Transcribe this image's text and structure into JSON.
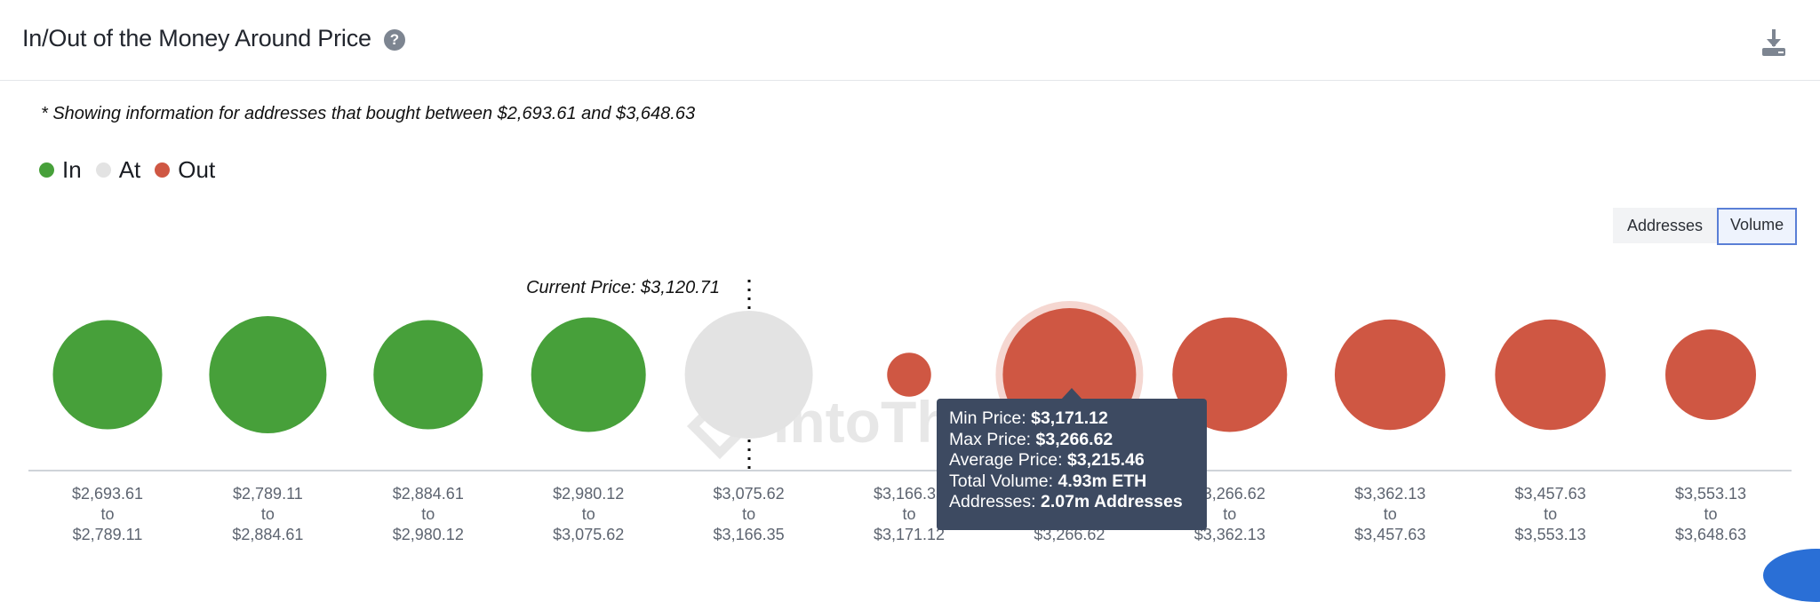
{
  "header": {
    "title": "In/Out of the Money Around Price",
    "help_icon": "?"
  },
  "note": "* Showing information for addresses that bought between $2,693.61 and $3,648.63",
  "legend": [
    {
      "label": "In",
      "color": "#47a03a"
    },
    {
      "label": "At",
      "color": "#e3e3e3"
    },
    {
      "label": "Out",
      "color": "#cf5743"
    }
  ],
  "toggle": {
    "addresses_label": "Addresses",
    "volume_label": "Volume",
    "active": "Volume"
  },
  "watermark": "IntoThe",
  "tooltip": {
    "min_label": "Min Price:",
    "min_value": "$3,171.12",
    "max_label": "Max Price:",
    "max_value": "$3,266.62",
    "avg_label": "Average Price:",
    "avg_value": "$3,215.46",
    "vol_label": "Total Volume:",
    "vol_value": "4.93m ETH",
    "addr_label": "Addresses:",
    "addr_value": "2.07m Addresses"
  },
  "chart_data": {
    "type": "scatter",
    "encoding": "bubble size = volume",
    "current_price_label": "Current Price: $3,120.71",
    "current_price": 3120.71,
    "buckets": [
      {
        "from": "$2,693.61",
        "to": "$2,789.11",
        "status": "in",
        "size": 0.82
      },
      {
        "from": "$2,789.11",
        "to": "$2,884.61",
        "status": "in",
        "size": 0.88
      },
      {
        "from": "$2,884.61",
        "to": "$2,980.12",
        "status": "in",
        "size": 0.82
      },
      {
        "from": "$2,980.12",
        "to": "$3,075.62",
        "status": "in",
        "size": 0.86
      },
      {
        "from": "$3,075.62",
        "to": "$3,166.35",
        "status": "at",
        "size": 0.96
      },
      {
        "from": "$3,166.35",
        "to": "$3,171.12",
        "status": "out",
        "size": 0.33
      },
      {
        "from": "$3,171.12",
        "to": "$3,266.62",
        "status": "out",
        "size": 1.0,
        "highlighted": true
      },
      {
        "from": "$3,266.62",
        "to": "$3,362.13",
        "status": "out",
        "size": 0.86
      },
      {
        "from": "$3,362.13",
        "to": "$3,457.63",
        "status": "out",
        "size": 0.83
      },
      {
        "from": "$3,457.63",
        "to": "$3,553.13",
        "status": "out",
        "size": 0.83
      },
      {
        "from": "$3,553.13",
        "to": "$3,648.63",
        "status": "out",
        "size": 0.68
      }
    ],
    "to_word": "to"
  }
}
